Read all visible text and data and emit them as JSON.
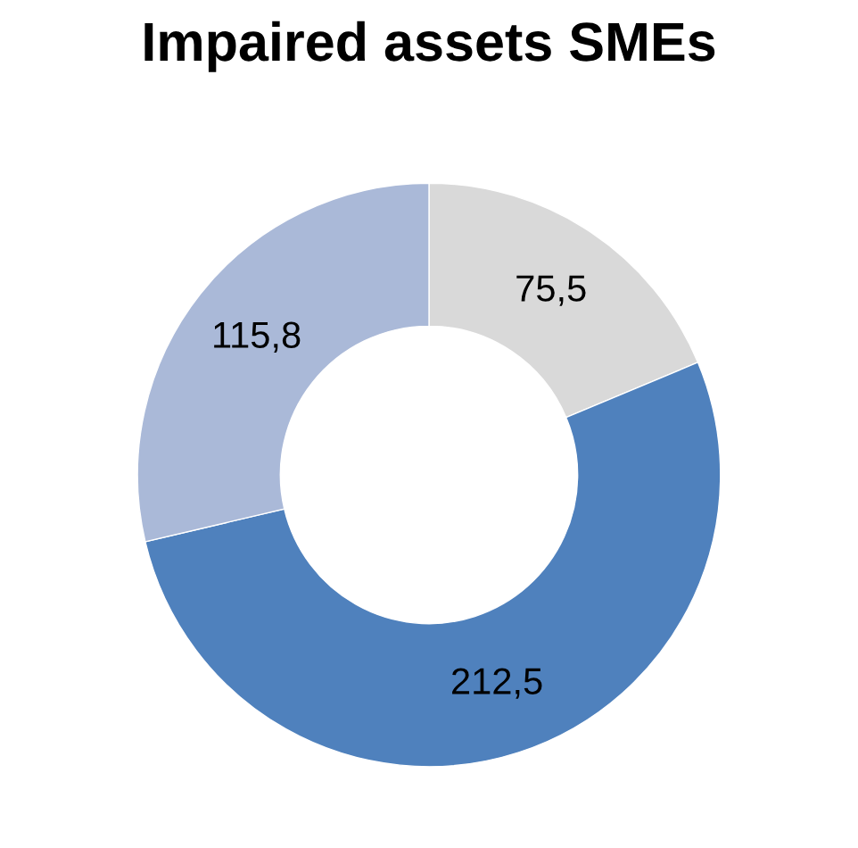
{
  "chart_data": {
    "type": "donut",
    "title": "Impaired assets SMEs",
    "categories": [
      null,
      null,
      null
    ],
    "values": [
      75.5,
      212.5,
      115.8
    ],
    "value_labels": [
      "75,5",
      "212,5",
      "115,8"
    ],
    "colors": [
      "#d9d9d9",
      "#4f81bd",
      "#aab9d8"
    ]
  }
}
